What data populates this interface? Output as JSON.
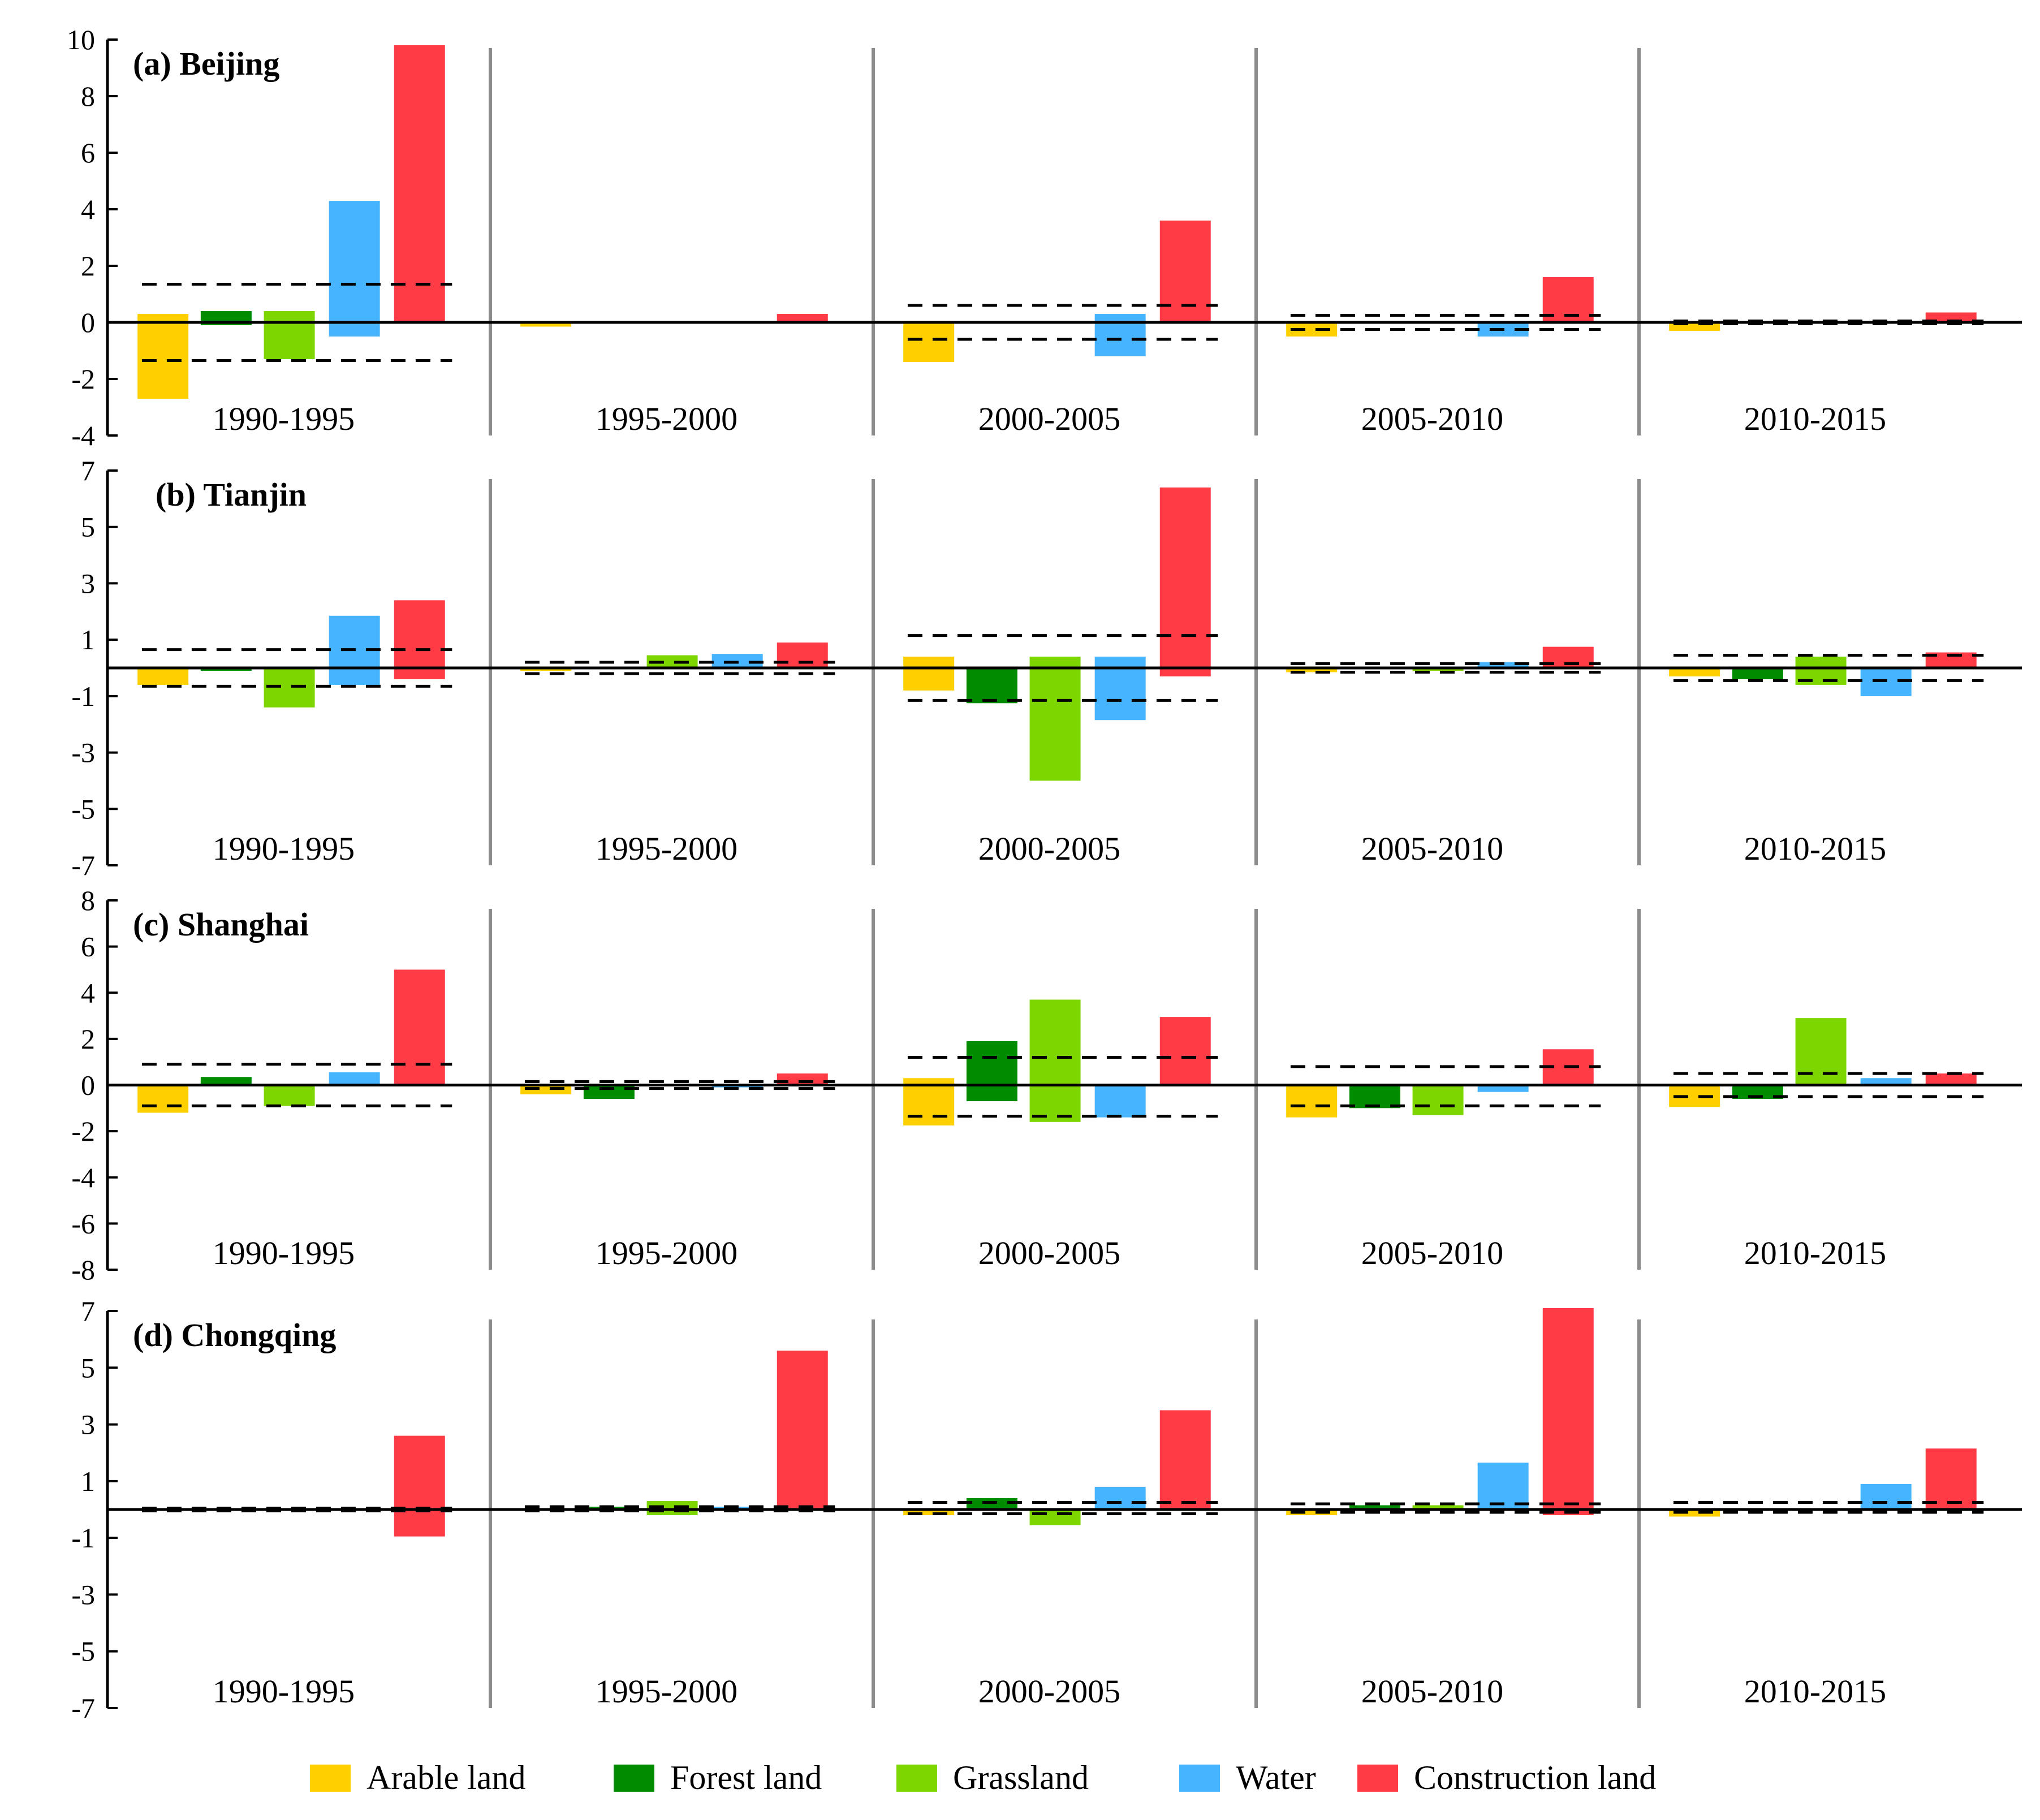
{
  "chart_data": {
    "type": "bar",
    "periods": [
      "1990-1995",
      "1995-2000",
      "2000-2005",
      "2005-2010",
      "2010-2015"
    ],
    "categories": [
      "Arable land",
      "Forest land",
      "Grassland",
      "Water",
      "Construction land"
    ],
    "colors": {
      "Arable land": "#FFD000",
      "Forest land": "#008C00",
      "Grassland": "#7ED600",
      "Water": "#46B4FF",
      "Construction land": "#FF3C46"
    },
    "panels": [
      {
        "title": "(a) Beijing",
        "ylim": [
          -4,
          10
        ],
        "yticks": [
          10,
          8,
          6,
          4,
          2,
          0,
          -2,
          -4
        ],
        "periods": [
          {
            "bars": [
              {
                "category": "Arable land",
                "values": [
                  0.3,
                  -2.7
                ]
              },
              {
                "category": "Forest land",
                "values": [
                  0.4,
                  -0.1
                ]
              },
              {
                "category": "Grassland",
                "values": [
                  0.4,
                  -1.3
                ]
              },
              {
                "category": "Water",
                "values": [
                  4.3,
                  -0.5
                ]
              },
              {
                "category": "Construction land",
                "values": [
                  9.8
                ]
              }
            ],
            "threshold": [
              1.35,
              -1.35
            ]
          },
          {
            "bars": [
              {
                "category": "Arable land",
                "values": [
                  -0.15
                ]
              },
              {
                "category": "Construction land",
                "values": [
                  0.3
                ]
              }
            ],
            "threshold": []
          },
          {
            "bars": [
              {
                "category": "Arable land",
                "values": [
                  -1.4
                ]
              },
              {
                "category": "Grassland",
                "values": [
                  0.05
                ]
              },
              {
                "category": "Water",
                "values": [
                  0.3,
                  -1.2
                ]
              },
              {
                "category": "Construction land",
                "values": [
                  3.6
                ]
              }
            ],
            "threshold": [
              0.6,
              -0.6
            ]
          },
          {
            "bars": [
              {
                "category": "Arable land",
                "values": [
                  -0.5
                ]
              },
              {
                "category": "Water",
                "values": [
                  -0.5
                ]
              },
              {
                "category": "Construction land",
                "values": [
                  1.6
                ]
              }
            ],
            "threshold": [
              0.25,
              -0.25
            ]
          },
          {
            "bars": [
              {
                "category": "Arable land",
                "values": [
                  -0.3
                ]
              },
              {
                "category": "Construction land",
                "values": [
                  0.35
                ]
              }
            ],
            "threshold": [
              0.05,
              -0.05
            ]
          }
        ]
      },
      {
        "title": "(b) Tianjin",
        "ylim": [
          -7,
          7
        ],
        "yticks": [
          7,
          5,
          3,
          1,
          -1,
          -3,
          -5,
          -7
        ],
        "periods": [
          {
            "bars": [
              {
                "category": "Arable land",
                "values": [
                  -0.6
                ]
              },
              {
                "category": "Forest land",
                "values": [
                  -0.1
                ]
              },
              {
                "category": "Grassland",
                "values": [
                  -1.4
                ]
              },
              {
                "category": "Water",
                "values": [
                  1.85,
                  -0.6
                ]
              },
              {
                "category": "Construction land",
                "values": [
                  2.4,
                  -0.4
                ]
              }
            ],
            "threshold": [
              0.65,
              -0.65
            ]
          },
          {
            "bars": [
              {
                "category": "Arable land",
                "values": [
                  -0.1
                ]
              },
              {
                "category": "Grassland",
                "values": [
                  0.45
                ]
              },
              {
                "category": "Water",
                "values": [
                  0.5
                ]
              },
              {
                "category": "Construction land",
                "values": [
                  0.9
                ]
              }
            ],
            "threshold": [
              0.2,
              -0.2
            ]
          },
          {
            "bars": [
              {
                "category": "Arable land",
                "values": [
                  0.4,
                  -0.8
                ]
              },
              {
                "category": "Forest land",
                "values": [
                  -1.25
                ]
              },
              {
                "category": "Grassland",
                "values": [
                  0.4,
                  -4.0
                ]
              },
              {
                "category": "Water",
                "values": [
                  0.4,
                  -1.85
                ]
              },
              {
                "category": "Construction land",
                "values": [
                  6.4,
                  -0.3
                ]
              }
            ],
            "threshold": [
              1.15,
              -1.15
            ]
          },
          {
            "bars": [
              {
                "category": "Arable land",
                "values": [
                  -0.15
                ]
              },
              {
                "category": "Grassland",
                "values": [
                  -0.1
                ]
              },
              {
                "category": "Water",
                "values": [
                  0.2
                ]
              },
              {
                "category": "Construction land",
                "values": [
                  0.75
                ]
              }
            ],
            "threshold": [
              0.15,
              -0.15
            ]
          },
          {
            "bars": [
              {
                "category": "Arable land",
                "values": [
                  -0.3
                ]
              },
              {
                "category": "Forest land",
                "values": [
                  -0.4
                ]
              },
              {
                "category": "Grassland",
                "values": [
                  0.4,
                  -0.6
                ]
              },
              {
                "category": "Water",
                "values": [
                  -1.0
                ]
              },
              {
                "category": "Construction land",
                "values": [
                  0.55
                ]
              }
            ],
            "threshold": [
              0.45,
              -0.45
            ]
          }
        ]
      },
      {
        "title": "(c) Shanghai",
        "ylim": [
          -8,
          8
        ],
        "yticks": [
          8,
          6,
          4,
          2,
          0,
          -2,
          -4,
          -6,
          -8
        ],
        "periods": [
          {
            "bars": [
              {
                "category": "Arable land",
                "values": [
                  -1.2
                ]
              },
              {
                "category": "Forest land",
                "values": [
                  0.35
                ]
              },
              {
                "category": "Grassland",
                "values": [
                  -0.9
                ]
              },
              {
                "category": "Water",
                "values": [
                  0.55
                ]
              },
              {
                "category": "Construction land",
                "values": [
                  5.0
                ]
              }
            ],
            "threshold": [
              0.9,
              -0.9
            ]
          },
          {
            "bars": [
              {
                "category": "Arable land",
                "values": [
                  -0.4
                ]
              },
              {
                "category": "Forest land",
                "values": [
                  -0.6
                ]
              },
              {
                "category": "Water",
                "values": [
                  -0.1
                ]
              },
              {
                "category": "Construction land",
                "values": [
                  0.5
                ]
              }
            ],
            "threshold": [
              0.15,
              -0.15
            ]
          },
          {
            "bars": [
              {
                "category": "Arable land",
                "values": [
                  0.3,
                  -1.75
                ]
              },
              {
                "category": "Forest land",
                "values": [
                  1.9,
                  -0.7
                ]
              },
              {
                "category": "Grassland",
                "values": [
                  3.7,
                  -1.6
                ]
              },
              {
                "category": "Water",
                "values": [
                  -1.4
                ]
              },
              {
                "category": "Construction land",
                "values": [
                  2.95
                ]
              }
            ],
            "threshold": [
              1.2,
              -1.35
            ]
          },
          {
            "bars": [
              {
                "category": "Arable land",
                "values": [
                  -1.4
                ]
              },
              {
                "category": "Forest land",
                "values": [
                  -1.0
                ]
              },
              {
                "category": "Grassland",
                "values": [
                  -1.3
                ]
              },
              {
                "category": "Water",
                "values": [
                  -0.3
                ]
              },
              {
                "category": "Construction land",
                "values": [
                  1.55
                ]
              }
            ],
            "threshold": [
              0.8,
              -0.9
            ]
          },
          {
            "bars": [
              {
                "category": "Arable land",
                "values": [
                  -0.95
                ]
              },
              {
                "category": "Forest land",
                "values": [
                  -0.6
                ]
              },
              {
                "category": "Grassland",
                "values": [
                  2.9
                ]
              },
              {
                "category": "Water",
                "values": [
                  0.3
                ]
              },
              {
                "category": "Construction land",
                "values": [
                  0.5
                ]
              }
            ],
            "threshold": [
              0.5,
              -0.5
            ]
          }
        ]
      },
      {
        "title": "(d) Chongqing",
        "ylim": [
          -7,
          7
        ],
        "yticks": [
          7,
          5,
          3,
          1,
          -1,
          -3,
          -5,
          -7
        ],
        "periods": [
          {
            "bars": [
              {
                "category": "Construction land",
                "values": [
                  2.6,
                  -0.95
                ]
              }
            ],
            "threshold": [
              0.05,
              -0.05
            ]
          },
          {
            "bars": [
              {
                "category": "Forest land",
                "values": [
                  0.1
                ]
              },
              {
                "category": "Grassland",
                "values": [
                  0.3,
                  -0.2
                ]
              },
              {
                "category": "Water",
                "values": [
                  0.1
                ]
              },
              {
                "category": "Construction land",
                "values": [
                  5.6
                ]
              }
            ],
            "threshold": [
              0.1,
              -0.05
            ]
          },
          {
            "bars": [
              {
                "category": "Arable land",
                "values": [
                  -0.2
                ]
              },
              {
                "category": "Forest land",
                "values": [
                  0.4
                ]
              },
              {
                "category": "Grassland",
                "values": [
                  -0.55
                ]
              },
              {
                "category": "Water",
                "values": [
                  0.8
                ]
              },
              {
                "category": "Construction land",
                "values": [
                  3.5
                ]
              }
            ],
            "threshold": [
              0.25,
              -0.15
            ]
          },
          {
            "bars": [
              {
                "category": "Arable land",
                "values": [
                  -0.2
                ]
              },
              {
                "category": "Forest land",
                "values": [
                  0.15
                ]
              },
              {
                "category": "Grassland",
                "values": [
                  0.15
                ]
              },
              {
                "category": "Water",
                "values": [
                  1.65
                ]
              },
              {
                "category": "Construction land",
                "values": [
                  7.1,
                  -0.2
                ]
              }
            ],
            "threshold": [
              0.2,
              -0.1
            ]
          },
          {
            "bars": [
              {
                "category": "Arable land",
                "values": [
                  -0.25
                ]
              },
              {
                "category": "Water",
                "values": [
                  0.9
                ]
              },
              {
                "category": "Construction land",
                "values": [
                  2.15
                ]
              }
            ],
            "threshold": [
              0.25,
              -0.1
            ]
          }
        ]
      }
    ],
    "xlabel": "",
    "ylabel": "",
    "legend": {
      "position": "bottom"
    }
  }
}
